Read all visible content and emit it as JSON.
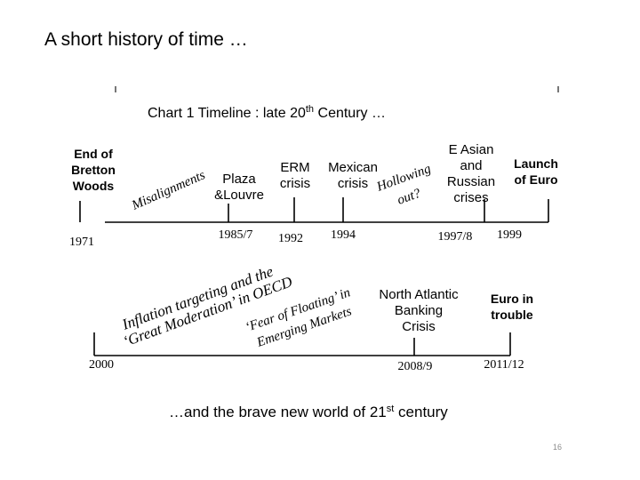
{
  "slide": {
    "title": "A short history of time …",
    "page_number": "16"
  },
  "chart": {
    "heading_main": "Chart 1 Timeline : late 20",
    "heading_sup": "th",
    "heading_tail": " Century …",
    "footer_main": "…and the brave new world of 21",
    "footer_sup": "st",
    "footer_tail": " century"
  },
  "timeline_20th": {
    "events": {
      "bretton": [
        "End of",
        "Bretton",
        "Woods"
      ],
      "plaza": [
        "Plaza",
        "&Louvre"
      ],
      "erm": [
        "ERM",
        "crisis"
      ],
      "mexican": [
        "Mexican",
        "crisis"
      ],
      "easian": [
        "E Asian",
        "and",
        "Russian",
        "crises"
      ],
      "euro_launch": [
        "Launch",
        "of Euro"
      ]
    },
    "years": {
      "y1971": "1971",
      "y1985": "1985/7",
      "y1992": "1992",
      "y1994": "1994",
      "y1997": "1997/8",
      "y1999": "1999"
    },
    "annotations": {
      "misalignments": "Misalignments",
      "hollowing": "Hollowing",
      "out": "out?"
    }
  },
  "timeline_21st": {
    "events": {
      "north_atlantic": [
        "North Atlantic",
        "Banking",
        "Crisis"
      ],
      "euro_trouble": [
        "Euro in",
        "trouble"
      ]
    },
    "years": {
      "y2000": "2000",
      "y2008": "2008/9",
      "y2011": "2011/12"
    },
    "annotations": {
      "inflation_1": "Inflation targeting and  the",
      "inflation_2": "‘Great Moderation’  in OECD",
      "floating_1": "‘Fear of Floating’ in",
      "floating_2": "Emerging Markets"
    }
  }
}
